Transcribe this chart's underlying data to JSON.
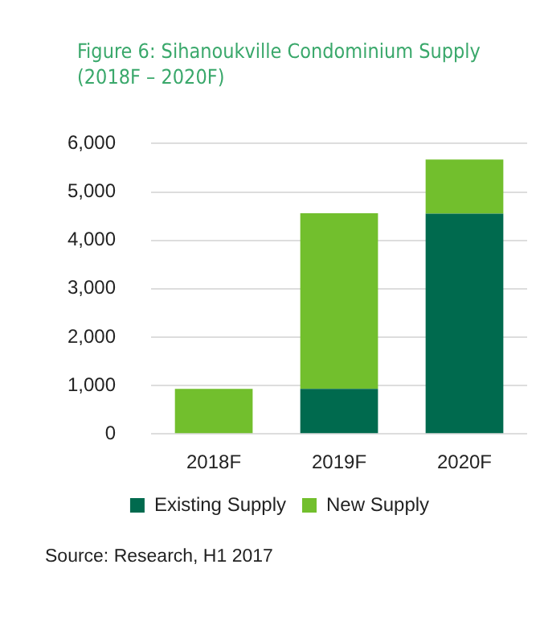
{
  "chart_data": {
    "type": "bar",
    "title": [
      "Figure 6: Sihanoukville Condominium Supply",
      "(2018F – 2020F)"
    ],
    "categories": [
      "2018F",
      "2019F",
      "2020F"
    ],
    "stacked": true,
    "series": [
      {
        "name": "Existing Supply",
        "color": "#006a4e",
        "values": [
          0,
          930,
          4550
        ]
      },
      {
        "name": "New Supply",
        "color": "#72bf2d",
        "values": [
          930,
          3630,
          1120
        ]
      }
    ],
    "ylim": [
      0,
      6000
    ],
    "yticks": [
      {
        "value": 0,
        "label": "0"
      },
      {
        "value": 1000,
        "label": "1,000"
      },
      {
        "value": 2000,
        "label": "2,000"
      },
      {
        "value": 3000,
        "label": "3,000"
      },
      {
        "value": 4000,
        "label": "4,000"
      },
      {
        "value": 5000,
        "label": "5,000"
      },
      {
        "value": 6000,
        "label": "6,000"
      }
    ],
    "grid": "y",
    "legend": "bottom",
    "annotations": [
      "Source: Research, H1 2017"
    ]
  }
}
